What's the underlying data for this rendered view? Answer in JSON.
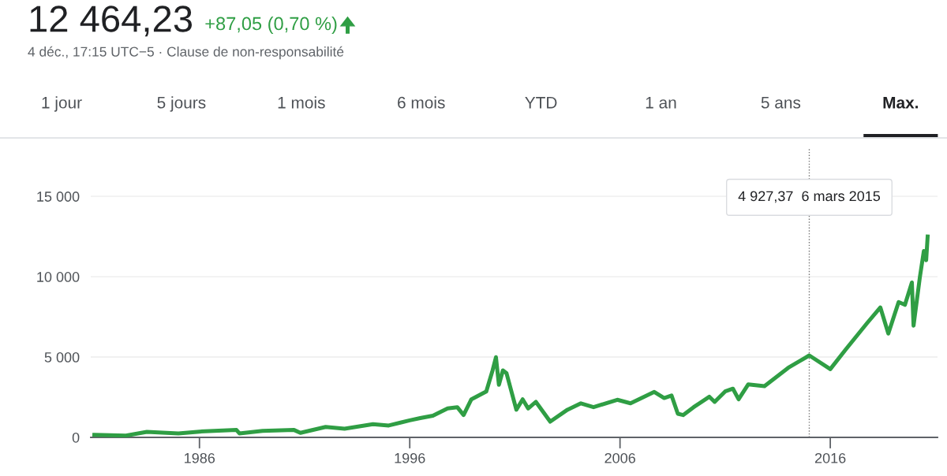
{
  "chart_data": {
    "type": "line",
    "title": "12 464,23",
    "subtitle": "+87,05 (0,70 %)",
    "annotations": [
      "4 déc., 17:15 UTC−5 · Clause de non-responsabilité",
      "1 jour",
      "5 jours",
      "1 mois",
      "6 mois",
      "YTD",
      "1 an",
      "5 ans",
      "Max."
    ],
    "x": [
      1981.0,
      1982.5,
      1983.5,
      1985.0,
      1986.0,
      1987.76,
      1987.9,
      1989.0,
      1990.5,
      1990.8,
      1992.0,
      1992.9,
      1994.25,
      1995.0,
      1996.0,
      1996.5,
      1997.1,
      1997.8,
      1998.26,
      1998.56,
      1998.93,
      1999.64,
      1999.94,
      2000.1,
      2000.24,
      2000.43,
      2000.6,
      2001.07,
      2001.37,
      2001.63,
      2002.0,
      2002.68,
      2003.5,
      2004.14,
      2004.74,
      2005.87,
      2006.5,
      2007.63,
      2008.1,
      2008.45,
      2008.75,
      2009.0,
      2009.5,
      2010.25,
      2010.5,
      2011.0,
      2011.37,
      2011.64,
      2012.1,
      2012.87,
      2014.0,
      2015.0,
      2016.0,
      2016.74,
      2017.75,
      2018.38,
      2018.76,
      2019.25,
      2019.55,
      2019.88,
      2019.96,
      2020.26,
      2020.45,
      2020.56,
      2020.63
    ],
    "series": [
      {
        "color": "#2f9e44",
        "values": [
          160,
          110,
          340,
          250,
          360,
          460,
          250,
          410,
          460,
          280,
          650,
          540,
          820,
          740,
          1060,
          1200,
          1350,
          1800,
          1880,
          1390,
          2370,
          2860,
          4170,
          4990,
          3270,
          4170,
          4000,
          1720,
          2370,
          1800,
          2210,
          980,
          1720,
          2120,
          1880,
          2340,
          2120,
          2830,
          2450,
          2610,
          1470,
          1390,
          1880,
          2530,
          2210,
          2860,
          3030,
          2370,
          3300,
          3190,
          4330,
          5100,
          4250,
          5480,
          7110,
          8090,
          6460,
          8420,
          8250,
          9640,
          6950,
          9970,
          11600,
          11030,
          12500
        ]
      }
    ],
    "xlim": [
      1980.83,
      2021.1
    ],
    "xticks": [
      1986,
      1996,
      2006,
      2016
    ],
    "ylim": [
      0,
      18000
    ],
    "yticks": [
      0,
      {
        "value": 5000,
        "label": "5 000"
      },
      {
        "value": 10000,
        "label": "10 000"
      },
      {
        "value": 15000,
        "label": "15 000"
      }
    ],
    "grid": "y",
    "legend": false,
    "ref_lines": [
      {
        "axis": "x",
        "value": 2015.0,
        "label": "4 927,37  6 mars 2015",
        "color": "#757575",
        "line_style": "dotted"
      }
    ]
  }
}
